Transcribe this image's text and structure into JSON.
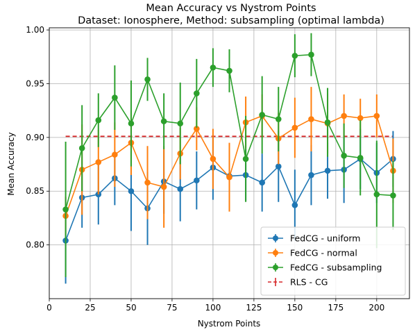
{
  "chart_data": {
    "type": "line",
    "title": "Mean Accuracy vs Nystrom Points",
    "subtitle": "Dataset: Ionosphere, Method: subsampling (optimal lambda)",
    "xlabel": "Nystrom Points",
    "ylabel": "Mean Accuracy",
    "xlim": [
      0,
      220
    ],
    "ylim": [
      0.75,
      1.002
    ],
    "xticks": [
      0,
      25,
      50,
      75,
      100,
      125,
      150,
      175,
      200
    ],
    "yticks": [
      0.8,
      0.85,
      0.9,
      0.95,
      1.0
    ],
    "xtick_labels": [
      "0",
      "25",
      "50",
      "75",
      "100",
      "125",
      "150",
      "175",
      "200"
    ],
    "ytick_labels": [
      "0.80",
      "0.85",
      "0.90",
      "0.95",
      "1.00"
    ],
    "grid": true,
    "legend_position": "lower-right",
    "x": [
      10,
      20,
      30,
      40,
      50,
      60,
      70,
      80,
      90,
      100,
      110,
      120,
      130,
      140,
      150,
      160,
      170,
      180,
      190,
      200,
      210
    ],
    "series": [
      {
        "name": "FedCG - uniform",
        "color": "#1f77b4",
        "values": [
          0.804,
          0.844,
          0.847,
          0.862,
          0.85,
          0.834,
          0.859,
          0.852,
          0.86,
          0.872,
          0.864,
          0.865,
          0.858,
          0.873,
          0.837,
          0.865,
          0.869,
          0.87,
          0.88,
          0.867,
          0.88
        ],
        "errors": [
          0.04,
          0.028,
          0.028,
          0.025,
          0.037,
          0.034,
          0.03,
          0.03,
          0.027,
          0.03,
          0.025,
          0.024,
          0.027,
          0.033,
          0.033,
          0.028,
          0.026,
          0.031,
          0.028,
          0.028,
          0.026
        ]
      },
      {
        "name": "FedCG - normal",
        "color": "#ff7f0e",
        "values": [
          0.827,
          0.87,
          0.877,
          0.884,
          0.895,
          0.858,
          0.854,
          0.885,
          0.908,
          0.88,
          0.863,
          0.914,
          0.92,
          0.899,
          0.909,
          0.917,
          0.913,
          0.92,
          0.918,
          0.92,
          0.869
        ],
        "errors": [
          0.018,
          0.042,
          0.03,
          0.03,
          0.03,
          0.034,
          0.038,
          0.024,
          0.02,
          0.028,
          0.032,
          0.024,
          0.02,
          0.024,
          0.028,
          0.03,
          0.028,
          0.02,
          0.018,
          0.02,
          0.03
        ]
      },
      {
        "name": "FedCG - subsampling",
        "color": "#2ca02c",
        "values": [
          0.833,
          0.89,
          0.916,
          0.937,
          0.913,
          0.954,
          0.915,
          0.913,
          0.941,
          0.965,
          0.962,
          0.88,
          0.921,
          0.917,
          0.976,
          0.977,
          0.914,
          0.883,
          0.881,
          0.847,
          0.846
        ],
        "errors": [
          0.063,
          0.04,
          0.025,
          0.03,
          0.04,
          0.02,
          0.026,
          0.038,
          0.032,
          0.018,
          0.02,
          0.04,
          0.036,
          0.03,
          0.02,
          0.02,
          0.032,
          0.03,
          0.035,
          0.05,
          0.032
        ]
      }
    ],
    "reference": {
      "name": "RLS - CG",
      "color": "#d62728",
      "value": 0.901,
      "x_range": [
        10,
        210
      ]
    }
  }
}
